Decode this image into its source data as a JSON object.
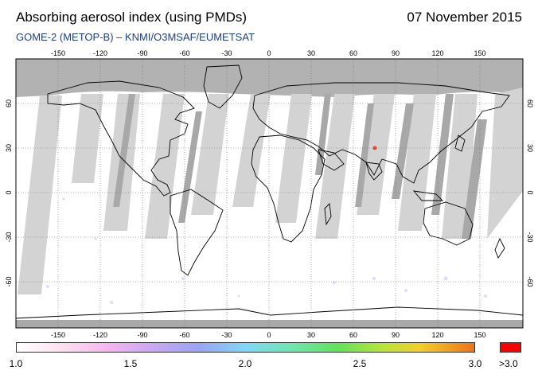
{
  "header": {
    "title": "Absorbing aerosol index (using PMDs)",
    "date": "07 November 2015",
    "subtitle": "GOME-2 (METOP-B)  –  KNMI/O3MSAF/EUMETSAT"
  },
  "map": {
    "lon_ticks": [
      "-150",
      "-120",
      "-90",
      "-60",
      "-30",
      "0",
      "30",
      "60",
      "90",
      "120",
      "150"
    ],
    "lat_ticks": [
      "60",
      "30",
      "0",
      "-30",
      "-60"
    ],
    "colors": {
      "missing_swath": "#cfcfcf",
      "dark_swath": "#a7a7a7",
      "polar_night": "#b2b2b2",
      "coast": "#000000"
    }
  },
  "colorbar": {
    "labels": [
      "1.0",
      "1.5",
      "2.0",
      "2.5",
      "3.0"
    ],
    "over_label": ">3.0",
    "over_color": "#ff0000"
  }
}
